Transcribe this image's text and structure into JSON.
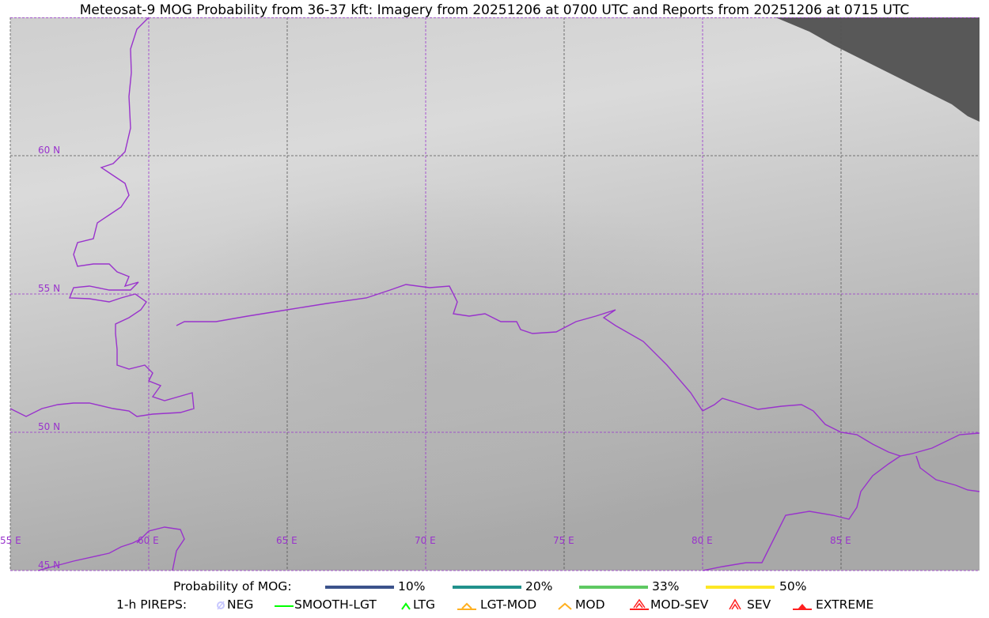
{
  "title": "Meteosat-9 MOG Probability from 36-37 kft: Imagery from 20251206 at 0700 UTC and Reports from 20251206 at 0715 UTC",
  "map": {
    "lon_labels": [
      "55 E",
      "60 E",
      "65 E",
      "70 E",
      "75 E",
      "80 E",
      "85 E"
    ],
    "lat_labels": [
      "60 N",
      "55 N",
      "50 N",
      "45 N"
    ],
    "border_color": "#9933cc",
    "nodata_color": "#585858"
  },
  "legend": {
    "probability_label": "Probability of MOG:",
    "probability": [
      {
        "label": "10%",
        "color": "#3b528b"
      },
      {
        "label": "20%",
        "color": "#21918c"
      },
      {
        "label": "33%",
        "color": "#5ec962"
      },
      {
        "label": "50%",
        "color": "#fde725"
      }
    ],
    "pireps_label": "1-h PIREPS:",
    "pireps": [
      {
        "label": "NEG",
        "color": "#c8c8ff",
        "icon": "neg-circle-slash-icon"
      },
      {
        "label": "SMOOTH-LGT",
        "color": "#00ff00",
        "icon": "dash-icon"
      },
      {
        "label": "LTG",
        "color": "#00ff00",
        "icon": "caret-icon"
      },
      {
        "label": "LGT-MOD",
        "color": "#ffb020",
        "icon": "caret-bar-icon"
      },
      {
        "label": "MOD",
        "color": "#ffb020",
        "icon": "caret-icon"
      },
      {
        "label": "MOD-SEV",
        "color": "#ff2020",
        "icon": "double-caret-bar-icon"
      },
      {
        "label": "SEV",
        "color": "#ff2020",
        "icon": "double-caret-icon"
      },
      {
        "label": "EXTREME",
        "color": "#ff2020",
        "icon": "filled-triangle-icon"
      }
    ]
  }
}
